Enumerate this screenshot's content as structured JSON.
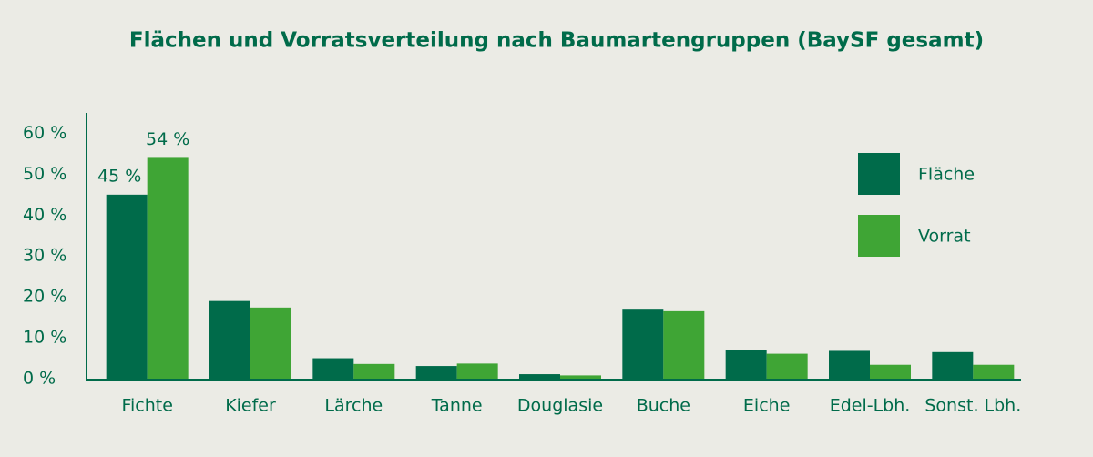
{
  "chart_data": {
    "type": "bar",
    "title": "Flächen und Vorratsverteilung nach Baumartengruppen (BaySF gesamt)",
    "categories": [
      "Fichte",
      "Kiefer",
      "Lärche",
      "Tanne",
      "Douglasie",
      "Buche",
      "Eiche",
      "Edel-Lbh.",
      "Sonst. Lbh."
    ],
    "series": [
      {
        "name": "Fläche",
        "color": "#006b4a",
        "values": [
          45,
          19,
          5,
          3.1,
          1.1,
          17.1,
          7.1,
          6.8,
          6.5
        ],
        "value_labels": [
          "45 %",
          null,
          null,
          null,
          null,
          null,
          null,
          null,
          null
        ]
      },
      {
        "name": "Vorrat",
        "color": "#3fa535",
        "values": [
          54,
          17.4,
          3.6,
          3.7,
          0.8,
          16.5,
          6.1,
          3.4,
          3.4
        ],
        "value_labels": [
          "54 %",
          null,
          null,
          null,
          null,
          null,
          null,
          null,
          null
        ]
      }
    ],
    "ylim": [
      0,
      65
    ],
    "yticks": [
      {
        "value": 0,
        "label": "0 %"
      },
      {
        "value": 10,
        "label": "10 %"
      },
      {
        "value": 20,
        "label": "20 %"
      },
      {
        "value": 30,
        "label": "30 %"
      },
      {
        "value": 40,
        "label": "40 %"
      },
      {
        "value": 50,
        "label": "50 %"
      },
      {
        "value": 60,
        "label": "60 %"
      }
    ],
    "legend": "upper right"
  }
}
